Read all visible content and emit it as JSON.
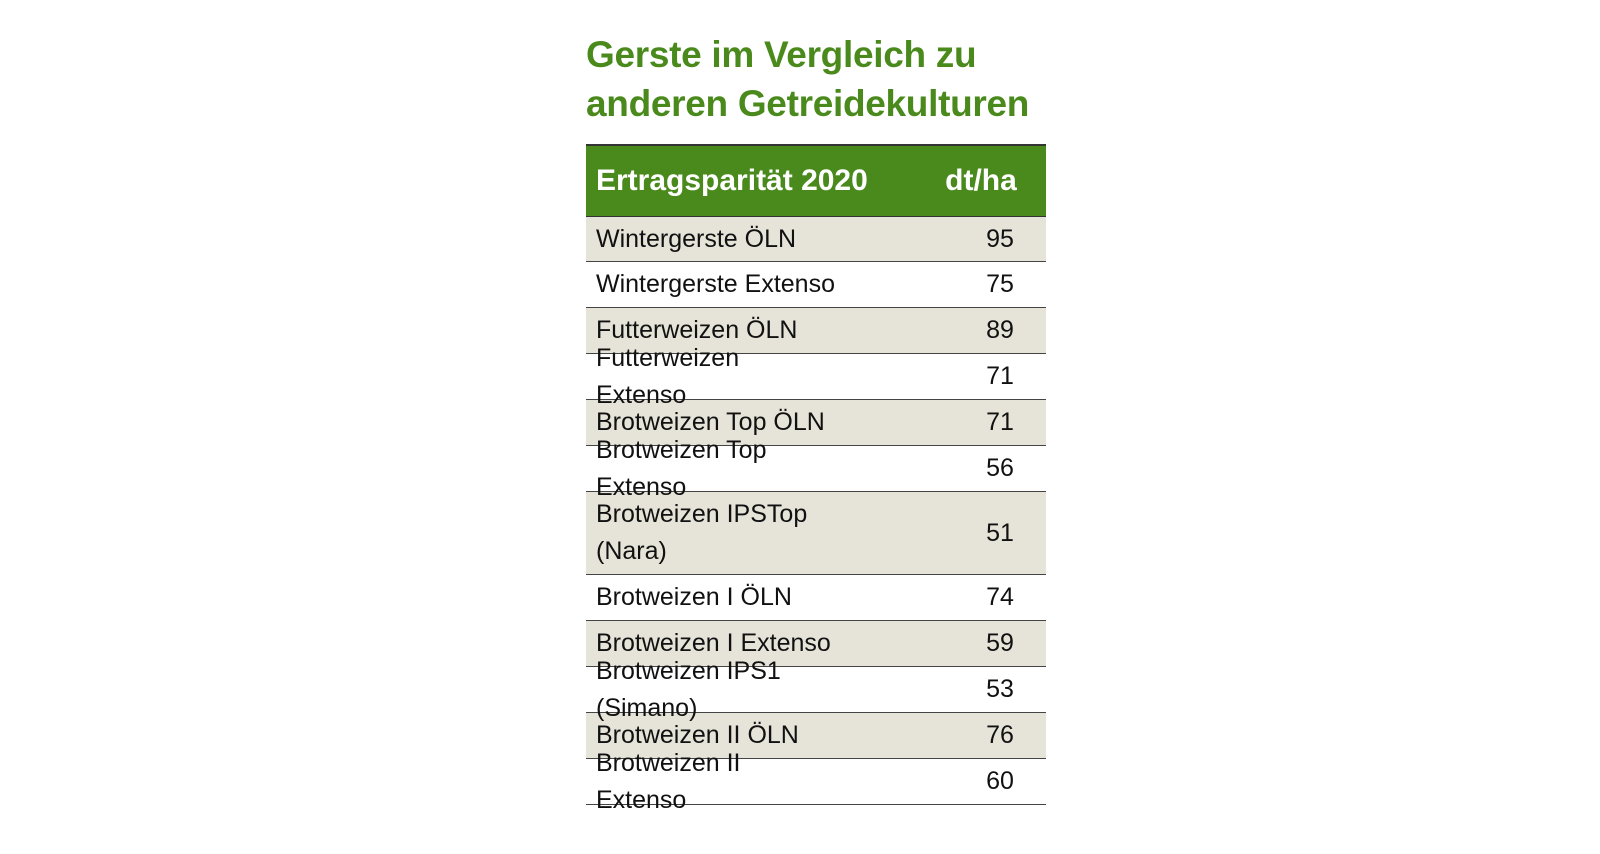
{
  "chart_data": {
    "type": "table",
    "title": "Gerste im Vergleich zu\nanderen Getreidekulturen",
    "columns": [
      "Ertragsparität 2020",
      "dt/ha"
    ],
    "rows": [
      {
        "label": "Wintergerste ÖLN",
        "value": "95"
      },
      {
        "label": "Wintergerste Extenso",
        "value": "75"
      },
      {
        "label": "Futterweizen ÖLN",
        "value": "89"
      },
      {
        "label": "Futterweizen Extenso",
        "value": "71"
      },
      {
        "label": "Brotweizen Top ÖLN",
        "value": "71"
      },
      {
        "label": "Brotweizen Top Extenso",
        "value": "56"
      },
      {
        "label": "Brotweizen IPSTop (Nara)",
        "value": "51"
      },
      {
        "label": "Brotweizen I ÖLN",
        "value": "74"
      },
      {
        "label": "Brotweizen I Extenso",
        "value": "59"
      },
      {
        "label": "Brotweizen IPS1 (Simano)",
        "value": "53"
      },
      {
        "label": "Brotweizen II ÖLN",
        "value": "76"
      },
      {
        "label": "Brotweizen II Extenso",
        "value": "60"
      }
    ]
  },
  "colors": {
    "title": "#4a8a1c",
    "header_bg": "#4a8a1c",
    "shaded_row": "#e6e3d8"
  }
}
